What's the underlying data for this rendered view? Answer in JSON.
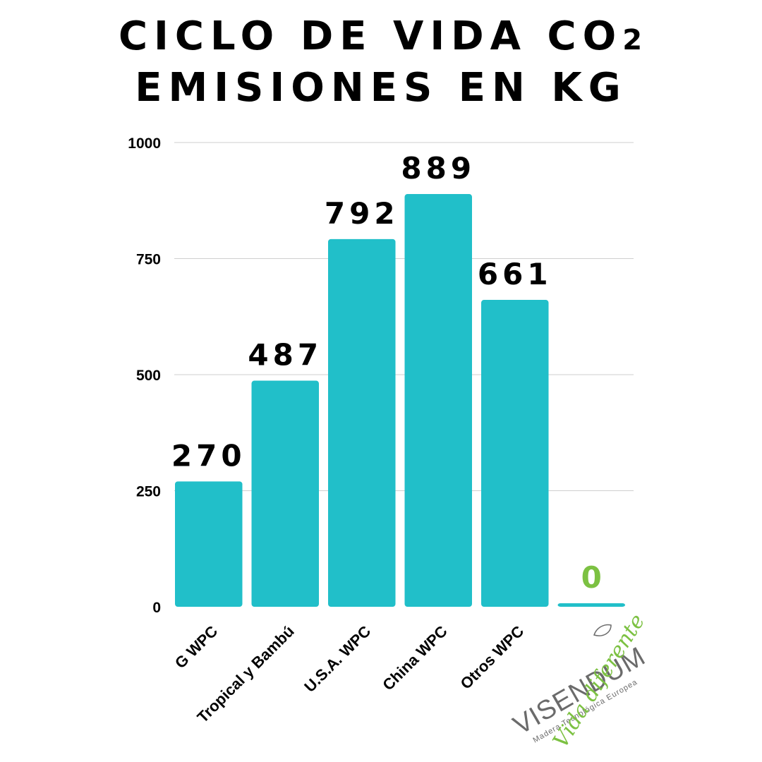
{
  "title": {
    "line1": "CICLO DE VIDA CO",
    "subscript": "2",
    "line2": "EMISIONES EN KG"
  },
  "colors": {
    "bar": "#21bfc9",
    "zero_label": "#7cc142",
    "logo_grey": "#6b6b6b",
    "grid": "#cfcfcf",
    "text": "#000000"
  },
  "logo": {
    "brand": "VISENDUM",
    "tagline": "Madera Tecnológica Europea",
    "slogan": "Vida diferente"
  },
  "chart_data": {
    "type": "bar",
    "categories": [
      "G WPC",
      "Tropical y Bambú",
      "U.S.A. WPC",
      "China WPC",
      "Otros WPC",
      ""
    ],
    "values": [
      270,
      487,
      792,
      889,
      661,
      0
    ],
    "data_labels": [
      "270",
      "487",
      "792",
      "889",
      "661",
      "0"
    ],
    "ylim": [
      0,
      1000
    ],
    "yticks": [
      0,
      250,
      500,
      750,
      1000
    ],
    "grid": true,
    "xlabel": "",
    "ylabel": ""
  }
}
